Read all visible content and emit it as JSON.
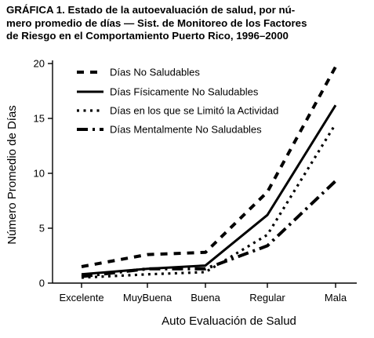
{
  "figure": {
    "title_lines": [
      "GRÁFICA 1. Estado de la autoevaluación de salud, por nú-",
      "mero promedio de días — Sist. de Monitoreo de los Factores",
      "de Riesgo en el Comportamiento Puerto Rico, 1996–2000"
    ]
  },
  "chart_data": {
    "type": "line",
    "title": "",
    "xlabel": "Auto Evaluación de Salud",
    "ylabel": "Número Promedio de Días",
    "categories": [
      "Excelente",
      "MuyBuena",
      "Buena",
      "Regular",
      "Mala"
    ],
    "ylim": [
      0,
      20
    ],
    "yticks": [
      0,
      5,
      10,
      15,
      20
    ],
    "grid": false,
    "legend_position": "top-left",
    "series": [
      {
        "name": "Días No Saludables",
        "style": "dashed",
        "values": [
          1.5,
          2.6,
          2.8,
          8.3,
          19.7
        ]
      },
      {
        "name": "Días Físicamente No Saludables",
        "style": "solid",
        "values": [
          0.8,
          1.3,
          1.6,
          6.2,
          16.2
        ]
      },
      {
        "name": "Días en los que se Limitó la Actividad",
        "style": "dotted",
        "values": [
          0.5,
          0.8,
          1.0,
          4.4,
          14.5
        ]
      },
      {
        "name": "Días Mentalmente No Saludables",
        "style": "dashdot",
        "values": [
          0.6,
          1.3,
          1.3,
          3.4,
          9.3
        ]
      }
    ]
  }
}
